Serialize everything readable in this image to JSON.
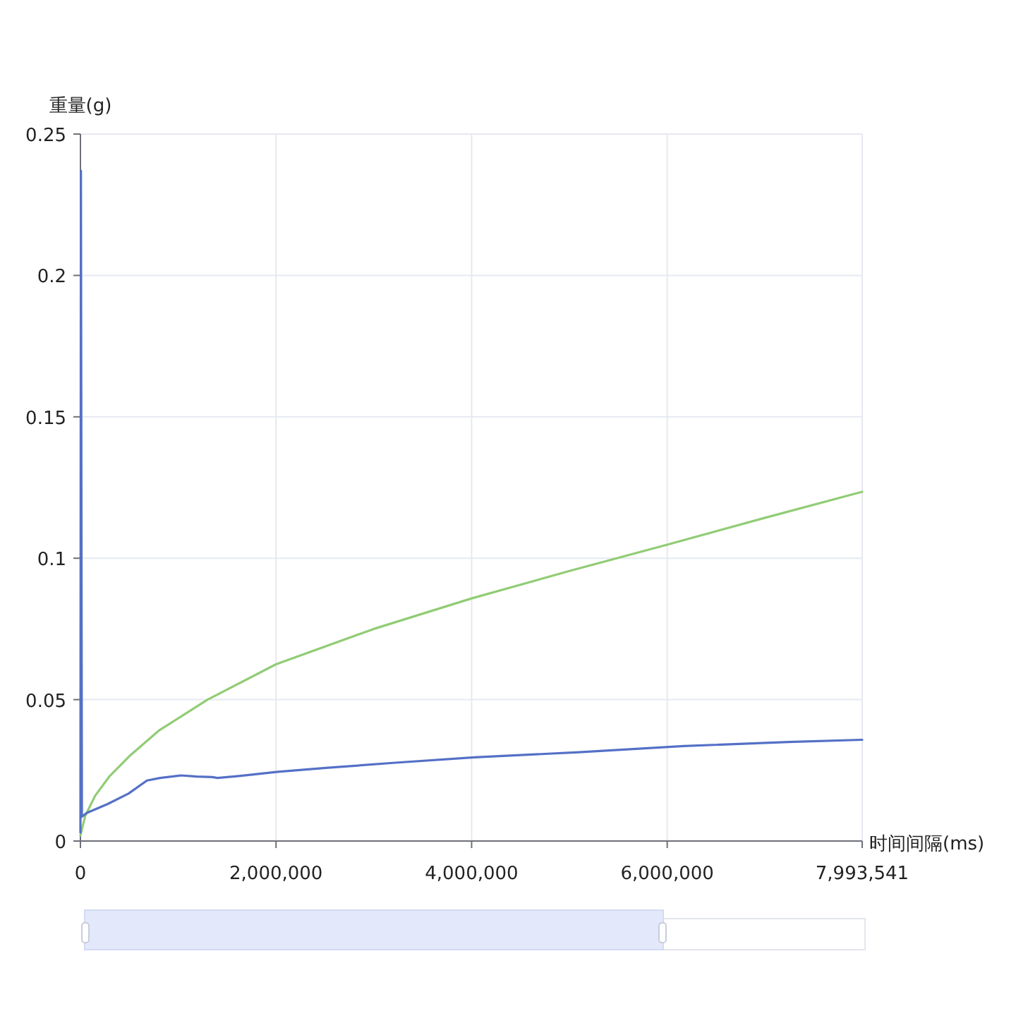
{
  "chart_data": {
    "type": "line",
    "xlabel": "时间间隔(ms)",
    "ylabel": "重量(g)",
    "xlim": [
      0,
      7993541
    ],
    "ylim": [
      0,
      0.25
    ],
    "xticks": [
      0,
      {
        "value": 2000000,
        "label": "2,000,000"
      },
      {
        "value": 4000000,
        "label": "4,000,000"
      },
      {
        "value": 6000000,
        "label": "6,000,000"
      },
      {
        "value": 7993541,
        "label": "7,993,541"
      }
    ],
    "yticks": [
      0,
      0.05,
      0.1,
      0.15,
      0.2,
      0.25
    ],
    "grid": true,
    "marker": "none",
    "line_style": "solid",
    "series": [
      {
        "color": "#91cc75",
        "x": [
          0,
          50000,
          150000,
          300000,
          500000,
          800000,
          1300000,
          2000000,
          3000000,
          4000000,
          5000000,
          6000000,
          7000000,
          7993541
        ],
        "values": [
          0.002,
          0.009,
          0.016,
          0.023,
          0.03,
          0.039,
          0.05,
          0.0625,
          0.075,
          0.0858,
          0.0955,
          0.1048,
          0.1143,
          0.1235
        ]
      },
      {
        "color": "#5470c6",
        "x": [
          0,
          5000,
          15000,
          64000,
          279000,
          493000,
          680000,
          814000,
          1030000,
          1190000,
          1350000,
          1400000,
          1620000,
          2020000,
          2530000,
          3220000,
          4030000,
          5100000,
          6170000,
          7240000,
          7993541
        ],
        "values": [
          0.003,
          0.237,
          0.0086,
          0.0099,
          0.0131,
          0.0168,
          0.0214,
          0.0223,
          0.0232,
          0.0228,
          0.0226,
          0.0223,
          0.023,
          0.0245,
          0.0259,
          0.0277,
          0.0296,
          0.0314,
          0.0336,
          0.035,
          0.0358
        ]
      }
    ]
  }
}
